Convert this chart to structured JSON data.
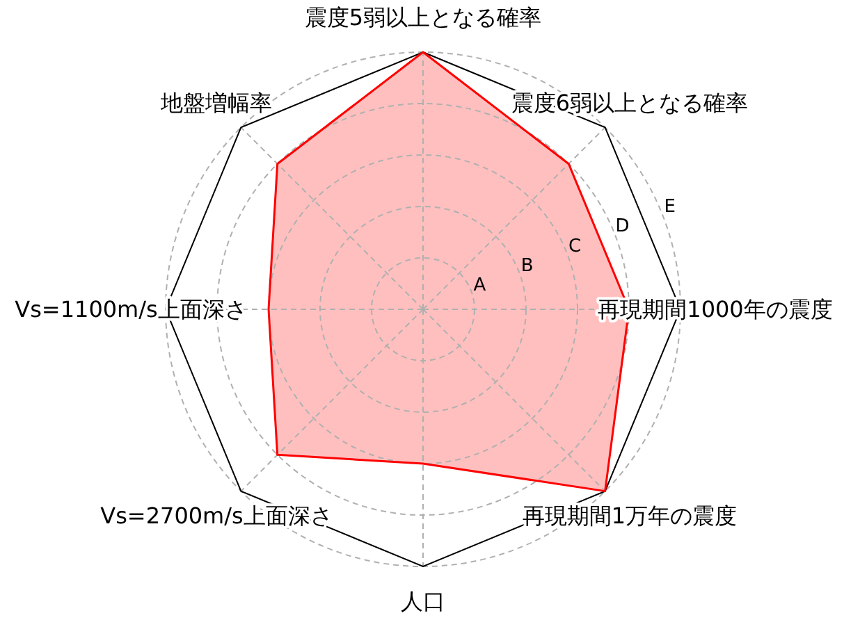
{
  "chart_data": {
    "type": "radar",
    "categories": [
      "震度5弱以上となる確率",
      "震度6弱以上となる確率",
      "再現期間1000年の震度",
      "再現期間1万年の震度",
      "人口",
      "Vs=2700m/s上面深さ",
      "Vs=1100m/s上面深さ",
      "地盤増幅率"
    ],
    "series": [
      {
        "color": "#ff0000",
        "values": [
          5,
          4,
          4,
          5,
          3,
          4,
          3,
          4
        ]
      }
    ],
    "ylim": [
      0,
      5
    ],
    "yticks": [
      {
        "value": 1,
        "label": "A"
      },
      {
        "value": 2,
        "label": "B"
      },
      {
        "value": 3,
        "label": "C"
      },
      {
        "value": 4,
        "label": "D"
      },
      {
        "value": 5,
        "label": "E"
      }
    ],
    "grid": true
  }
}
